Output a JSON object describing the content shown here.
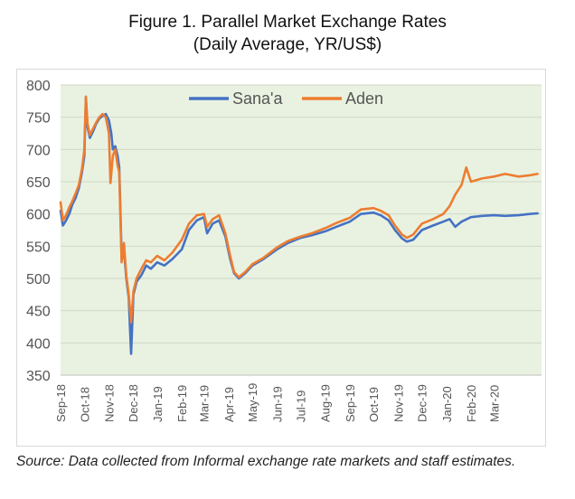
{
  "title": "Figure 1.  Parallel Market Exchange Rates",
  "subtitle": "(Daily Average, YR/US$)",
  "source_note": "Source: Data collected from Informal exchange rate markets and staff estimates.",
  "colors": {
    "Sana'a": "#4472c4",
    "Aden": "#ed7d31",
    "plot_background": "#e9f2e1",
    "grid": "#cfd8c8"
  },
  "chart_data": {
    "type": "line",
    "title": "Figure 1.  Parallel Market Exchange Rates",
    "subtitle": "(Daily Average, YR/US$)",
    "xlabel": "",
    "ylabel": "",
    "ylim": [
      350,
      800
    ],
    "yticks": [
      350,
      400,
      450,
      500,
      550,
      600,
      650,
      700,
      750,
      800
    ],
    "xlim": [
      "2018-09-01",
      "2020-04-30"
    ],
    "xtick_labels": [
      "Sep-18",
      "Oct-18",
      "Nov-18",
      "Dec-18",
      "Jan-19",
      "Feb-19",
      "Mar-19",
      "Apr-19",
      "May-19",
      "Jun-19",
      "Jul-19",
      "Aug-19",
      "Sep-19",
      "Oct-19",
      "Nov-19",
      "Dec-19",
      "Jan-20",
      "Feb-20",
      "Mar-20"
    ],
    "xtick_dates": [
      "2018-09-01",
      "2018-10-01",
      "2018-11-01",
      "2018-12-01",
      "2019-01-01",
      "2019-02-01",
      "2019-03-01",
      "2019-04-01",
      "2019-05-01",
      "2019-06-01",
      "2019-07-01",
      "2019-08-01",
      "2019-09-01",
      "2019-10-01",
      "2019-11-01",
      "2019-12-01",
      "2020-01-01",
      "2020-02-01",
      "2020-03-01"
    ],
    "grid": true,
    "legend_position": "top",
    "series": [
      {
        "name": "Sana'a",
        "points": [
          [
            "2018-09-01",
            605
          ],
          [
            "2018-09-04",
            582
          ],
          [
            "2018-09-08",
            590
          ],
          [
            "2018-09-12",
            600
          ],
          [
            "2018-09-16",
            615
          ],
          [
            "2018-09-20",
            625
          ],
          [
            "2018-09-24",
            640
          ],
          [
            "2018-09-28",
            665
          ],
          [
            "2018-10-01",
            690
          ],
          [
            "2018-10-03",
            780
          ],
          [
            "2018-10-05",
            735
          ],
          [
            "2018-10-08",
            718
          ],
          [
            "2018-10-12",
            728
          ],
          [
            "2018-10-16",
            740
          ],
          [
            "2018-10-20",
            748
          ],
          [
            "2018-10-24",
            752
          ],
          [
            "2018-10-28",
            755
          ],
          [
            "2018-11-01",
            745
          ],
          [
            "2018-11-04",
            725
          ],
          [
            "2018-11-06",
            700
          ],
          [
            "2018-11-09",
            705
          ],
          [
            "2018-11-12",
            690
          ],
          [
            "2018-11-14",
            672
          ],
          [
            "2018-11-17",
            535
          ],
          [
            "2018-11-20",
            545
          ],
          [
            "2018-11-23",
            500
          ],
          [
            "2018-11-26",
            470
          ],
          [
            "2018-11-29",
            383
          ],
          [
            "2018-12-02",
            475
          ],
          [
            "2018-12-06",
            495
          ],
          [
            "2018-12-12",
            505
          ],
          [
            "2018-12-18",
            520
          ],
          [
            "2018-12-24",
            515
          ],
          [
            "2019-01-01",
            525
          ],
          [
            "2019-01-10",
            520
          ],
          [
            "2019-01-20",
            530
          ],
          [
            "2019-02-01",
            545
          ],
          [
            "2019-02-10",
            575
          ],
          [
            "2019-02-20",
            590
          ],
          [
            "2019-03-01",
            595
          ],
          [
            "2019-03-05",
            570
          ],
          [
            "2019-03-12",
            585
          ],
          [
            "2019-03-20",
            590
          ],
          [
            "2019-03-28",
            565
          ],
          [
            "2019-04-03",
            530
          ],
          [
            "2019-04-08",
            508
          ],
          [
            "2019-04-14",
            500
          ],
          [
            "2019-04-22",
            508
          ],
          [
            "2019-05-01",
            520
          ],
          [
            "2019-05-15",
            530
          ],
          [
            "2019-06-01",
            545
          ],
          [
            "2019-06-15",
            555
          ],
          [
            "2019-07-01",
            563
          ],
          [
            "2019-07-15",
            567
          ],
          [
            "2019-08-01",
            573
          ],
          [
            "2019-08-15",
            580
          ],
          [
            "2019-09-01",
            588
          ],
          [
            "2019-09-15",
            600
          ],
          [
            "2019-10-01",
            602
          ],
          [
            "2019-10-10",
            598
          ],
          [
            "2019-10-20",
            590
          ],
          [
            "2019-10-28",
            575
          ],
          [
            "2019-11-06",
            562
          ],
          [
            "2019-11-12",
            557
          ],
          [
            "2019-11-20",
            560
          ],
          [
            "2019-12-01",
            575
          ],
          [
            "2019-12-15",
            582
          ],
          [
            "2019-12-28",
            588
          ],
          [
            "2020-01-05",
            592
          ],
          [
            "2020-01-12",
            580
          ],
          [
            "2020-01-20",
            588
          ],
          [
            "2020-02-01",
            595
          ],
          [
            "2020-02-15",
            597
          ],
          [
            "2020-03-01",
            598
          ],
          [
            "2020-03-15",
            597
          ],
          [
            "2020-04-01",
            598
          ],
          [
            "2020-04-15",
            600
          ],
          [
            "2020-04-25",
            601
          ]
        ]
      },
      {
        "name": "Aden",
        "points": [
          [
            "2018-09-01",
            618
          ],
          [
            "2018-09-04",
            590
          ],
          [
            "2018-09-08",
            598
          ],
          [
            "2018-09-12",
            610
          ],
          [
            "2018-09-16",
            620
          ],
          [
            "2018-09-20",
            632
          ],
          [
            "2018-09-24",
            645
          ],
          [
            "2018-09-28",
            670
          ],
          [
            "2018-10-01",
            700
          ],
          [
            "2018-10-03",
            782
          ],
          [
            "2018-10-05",
            740
          ],
          [
            "2018-10-08",
            722
          ],
          [
            "2018-10-12",
            732
          ],
          [
            "2018-10-16",
            742
          ],
          [
            "2018-10-20",
            750
          ],
          [
            "2018-10-24",
            755
          ],
          [
            "2018-10-28",
            750
          ],
          [
            "2018-11-01",
            725
          ],
          [
            "2018-11-03",
            648
          ],
          [
            "2018-11-06",
            690
          ],
          [
            "2018-11-09",
            700
          ],
          [
            "2018-11-12",
            675
          ],
          [
            "2018-11-14",
            665
          ],
          [
            "2018-11-17",
            525
          ],
          [
            "2018-11-20",
            555
          ],
          [
            "2018-11-23",
            505
          ],
          [
            "2018-11-26",
            475
          ],
          [
            "2018-11-29",
            432
          ],
          [
            "2018-12-02",
            480
          ],
          [
            "2018-12-06",
            500
          ],
          [
            "2018-12-12",
            515
          ],
          [
            "2018-12-18",
            528
          ],
          [
            "2018-12-24",
            525
          ],
          [
            "2019-01-01",
            535
          ],
          [
            "2019-01-10",
            528
          ],
          [
            "2019-01-20",
            540
          ],
          [
            "2019-02-01",
            560
          ],
          [
            "2019-02-10",
            585
          ],
          [
            "2019-02-20",
            598
          ],
          [
            "2019-03-01",
            600
          ],
          [
            "2019-03-05",
            580
          ],
          [
            "2019-03-12",
            592
          ],
          [
            "2019-03-20",
            598
          ],
          [
            "2019-03-28",
            570
          ],
          [
            "2019-04-03",
            535
          ],
          [
            "2019-04-08",
            510
          ],
          [
            "2019-04-14",
            502
          ],
          [
            "2019-04-22",
            510
          ],
          [
            "2019-05-01",
            522
          ],
          [
            "2019-05-15",
            532
          ],
          [
            "2019-06-01",
            548
          ],
          [
            "2019-06-15",
            558
          ],
          [
            "2019-07-01",
            565
          ],
          [
            "2019-07-15",
            570
          ],
          [
            "2019-08-01",
            578
          ],
          [
            "2019-08-15",
            586
          ],
          [
            "2019-09-01",
            594
          ],
          [
            "2019-09-15",
            607
          ],
          [
            "2019-10-01",
            609
          ],
          [
            "2019-10-10",
            605
          ],
          [
            "2019-10-20",
            598
          ],
          [
            "2019-10-28",
            582
          ],
          [
            "2019-11-06",
            568
          ],
          [
            "2019-11-12",
            563
          ],
          [
            "2019-11-20",
            568
          ],
          [
            "2019-12-01",
            585
          ],
          [
            "2019-12-15",
            592
          ],
          [
            "2019-12-28",
            600
          ],
          [
            "2020-01-05",
            612
          ],
          [
            "2020-01-12",
            630
          ],
          [
            "2020-01-20",
            645
          ],
          [
            "2020-01-26",
            672
          ],
          [
            "2020-02-01",
            650
          ],
          [
            "2020-02-15",
            655
          ],
          [
            "2020-03-01",
            658
          ],
          [
            "2020-03-15",
            662
          ],
          [
            "2020-04-01",
            658
          ],
          [
            "2020-04-15",
            660
          ],
          [
            "2020-04-25",
            662
          ]
        ]
      }
    ]
  }
}
